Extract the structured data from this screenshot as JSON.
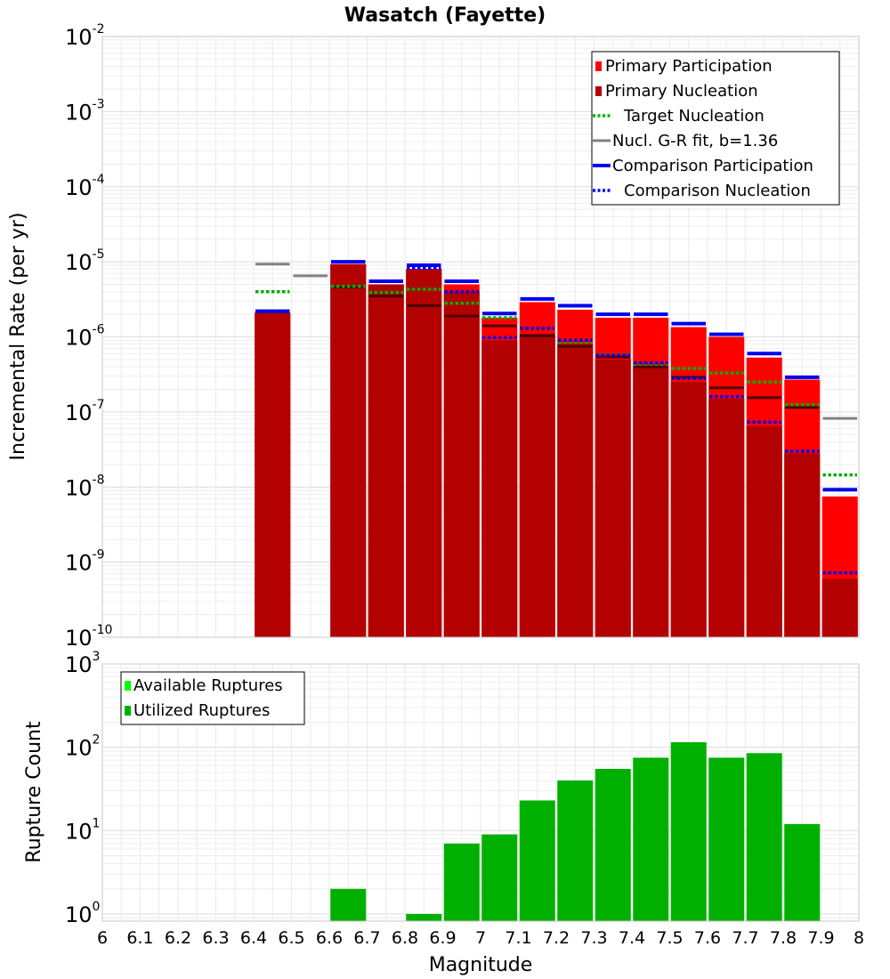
{
  "chart_data": [
    {
      "type": "bar",
      "title": "Wasatch (Fayette)",
      "xlabel": "",
      "ylabel": "Incremental Rate (per yr)",
      "yscale": "log",
      "ylim": [
        1e-10,
        0.01
      ],
      "xlim": [
        6.0,
        8.0
      ],
      "bin_width": 0.1,
      "grid": true,
      "legend_position": "top-right",
      "y_tick_labels": [
        {
          "base": "10",
          "exp": "-2"
        },
        {
          "base": "10",
          "exp": "-3"
        },
        {
          "base": "10",
          "exp": "-4"
        },
        {
          "base": "10",
          "exp": "-5"
        },
        {
          "base": "10",
          "exp": "-6"
        },
        {
          "base": "10",
          "exp": "-7"
        },
        {
          "base": "10",
          "exp": "-8"
        },
        {
          "base": "10",
          "exp": "-9"
        },
        {
          "base": "10",
          "exp": "-10"
        }
      ],
      "legend": [
        {
          "label": "Primary Participation",
          "style": "bar",
          "color": "#ff0000"
        },
        {
          "label": "Primary Nucleation",
          "style": "bar",
          "color": "#b30000"
        },
        {
          "label": "Target Nucleation",
          "style": "dotted",
          "color": "#00b000"
        },
        {
          "label": "Nucl. G-R fit, b=1.36",
          "style": "solid",
          "color": "#808080"
        },
        {
          "label": "Comparison Participation",
          "style": "solid-thick",
          "color": "#0000ee"
        },
        {
          "label": "Comparison Nucleation",
          "style": "dotted",
          "color": "#0000ee"
        }
      ],
      "colors": {
        "primary_participation": "#ff0000",
        "primary_nucleation": "#b30000",
        "target_nucleation": "#00b000",
        "gr_fit": "#808080",
        "comparison_participation": "#0000ee",
        "comparison_nucleation": "#0000ee",
        "nucleation_marker": "#4a0000"
      },
      "series": [
        {
          "name": "Primary Participation",
          "x": [
            6.45,
            6.65,
            6.75,
            6.85,
            6.95,
            7.05,
            7.15,
            7.25,
            7.35,
            7.45,
            7.55,
            7.65,
            7.75,
            7.85,
            7.95
          ],
          "values": [
            2.1e-06,
            9.3e-06,
            5e-06,
            8e-06,
            5e-06,
            1.8e-06,
            2.9e-06,
            2.3e-06,
            1.8e-06,
            1.8e-06,
            1.35e-06,
            1e-06,
            5.3e-07,
            2.7e-07,
            7.5e-09
          ]
        },
        {
          "name": "Primary Nucleation",
          "x": [
            6.45,
            6.65,
            6.75,
            6.85,
            6.95,
            7.05,
            7.15,
            7.25,
            7.35,
            7.45,
            7.55,
            7.65,
            7.75,
            7.85,
            7.95
          ],
          "values": [
            2.1e-06,
            9.3e-06,
            5e-06,
            8e-06,
            4e-06,
            9e-07,
            1.1e-06,
            8e-07,
            5e-07,
            4e-07,
            2.5e-07,
            1.5e-07,
            6.5e-08,
            2.8e-08,
            6e-10
          ]
        },
        {
          "name": "Target Nucleation",
          "x": [
            6.45,
            6.65,
            6.75,
            6.85,
            6.95,
            7.05,
            7.15,
            7.25,
            7.35,
            7.45,
            7.55,
            7.65,
            7.75,
            7.85,
            7.95
          ],
          "values": [
            4e-06,
            4.7e-06,
            3.9e-06,
            4.3e-06,
            2.8e-06,
            1.8e-06,
            1.3e-06,
            8.5e-07,
            5.8e-07,
            4.3e-07,
            3.8e-07,
            3.3e-07,
            2.5e-07,
            1.25e-07,
            1.45e-08
          ]
        },
        {
          "name": "Nucl. G-R fit, b=1.36",
          "x": [
            6.45,
            6.55
          ],
          "values": [
            9.3e-06,
            6.5e-06
          ]
        },
        {
          "name": "Nucl. G-R fit, b=1.36",
          "x": [
            7.95
          ],
          "values": [
            8.2e-08
          ]
        },
        {
          "name": "Comparison Participation",
          "x": [
            6.45,
            6.65,
            6.75,
            6.85,
            6.95,
            7.05,
            7.15,
            7.25,
            7.35,
            7.45,
            7.55,
            7.65,
            7.75,
            7.85,
            7.95
          ],
          "values": [
            2.2e-06,
            1e-05,
            5.5e-06,
            9e-06,
            5.5e-06,
            2.05e-06,
            3.2e-06,
            2.6e-06,
            2e-06,
            2e-06,
            1.5e-06,
            1.08e-06,
            6e-07,
            2.9e-07,
            9.2e-09
          ]
        },
        {
          "name": "Comparison Nucleation",
          "x": [
            6.75,
            6.85,
            6.95,
            7.05,
            7.15,
            7.25,
            7.35,
            7.45,
            7.55,
            7.65,
            7.75,
            7.85,
            7.95
          ],
          "values": [
            5.5e-06,
            8.2e-06,
            4e-06,
            9.8e-07,
            1.3e-06,
            9e-07,
            5.7e-07,
            4.5e-07,
            2.8e-07,
            1.6e-07,
            7.3e-08,
            3e-08,
            7.2e-10
          ]
        }
      ],
      "nucleation_markers": {
        "x": [
          6.65,
          6.75,
          6.85,
          6.95,
          7.05,
          7.15,
          7.25,
          7.35,
          7.45,
          7.55,
          7.65,
          7.75,
          7.85
        ],
        "values": [
          4.6e-06,
          3.5e-06,
          2.6e-06,
          1.9e-06,
          1.4e-06,
          1.03e-06,
          7.5e-07,
          5.4e-07,
          4e-07,
          2.9e-07,
          2.1e-07,
          1.55e-07,
          1.15e-07
        ]
      }
    },
    {
      "type": "bar",
      "title": "",
      "xlabel": "Magnitude",
      "ylabel": "Rupture Count",
      "yscale": "log",
      "ylim": [
        0.82,
        1000
      ],
      "xlim": [
        6.0,
        8.0
      ],
      "bin_width": 0.1,
      "grid": true,
      "legend_position": "top-left",
      "x_ticks": [
        "6",
        "6.1",
        "6.2",
        "6.3",
        "6.4",
        "6.5",
        "6.6",
        "6.7",
        "6.8",
        "6.9",
        "7",
        "7.1",
        "7.2",
        "7.3",
        "7.4",
        "7.5",
        "7.6",
        "7.7",
        "7.8",
        "7.9",
        "8"
      ],
      "y_tick_labels": [
        {
          "base": "10",
          "exp": "3"
        },
        {
          "base": "10",
          "exp": "2"
        },
        {
          "base": "10",
          "exp": "1"
        },
        {
          "base": "10",
          "exp": "0"
        }
      ],
      "legend": [
        {
          "label": "Available Ruptures",
          "style": "bar",
          "color": "#00ff00"
        },
        {
          "label": "Utilized Ruptures",
          "style": "bar",
          "color": "#00b000"
        }
      ],
      "colors": {
        "available": "#00ff00",
        "utilized": "#00b000"
      },
      "series": [
        {
          "name": "Utilized Ruptures",
          "x": [
            6.65,
            6.85,
            6.95,
            7.05,
            7.15,
            7.25,
            7.35,
            7.45,
            7.55,
            7.65,
            7.75,
            7.85
          ],
          "values": [
            2,
            1,
            7,
            9,
            23,
            40,
            55,
            75,
            115,
            75,
            85,
            12
          ]
        }
      ]
    }
  ]
}
